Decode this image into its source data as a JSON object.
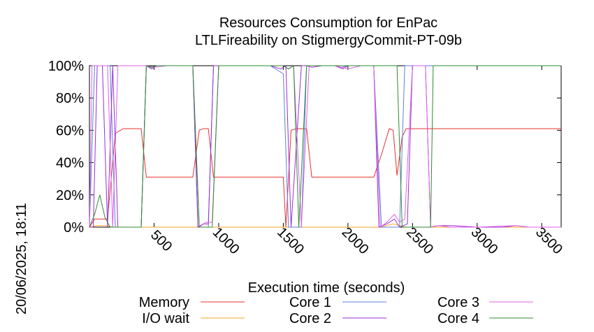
{
  "chart_data": {
    "type": "line",
    "title": "Resources Consumption for EnPac",
    "subtitle": "LTLFireability on StigmergyCommit-PT-09b",
    "xlabel": "Execution time (seconds)",
    "ylabel": "",
    "timestamp": "20/06/2025, 18:11",
    "xlim": [
      0,
      3650
    ],
    "ylim": [
      0,
      100
    ],
    "grid": false,
    "legend_position": "bottom",
    "x_ticks": [
      500,
      1000,
      1500,
      2000,
      2500,
      3000,
      3500
    ],
    "x_tick_labels": [
      "500",
      "1000",
      "1500",
      "2000",
      "2500",
      "3000",
      "3500"
    ],
    "y_ticks": [
      0,
      20,
      40,
      60,
      80,
      100
    ],
    "y_tick_labels": [
      "0%",
      "20%",
      "40%",
      "60%",
      "80%",
      "100%"
    ],
    "series": [
      {
        "name": "Memory",
        "color": "#e8322e",
        "x": [
          0,
          40,
          80,
          140,
          200,
          260,
          300,
          350,
          400,
          440,
          500,
          600,
          700,
          800,
          850,
          880,
          920,
          960,
          1000,
          1100,
          1200,
          1300,
          1400,
          1500,
          1520,
          1560,
          1600,
          1680,
          1720,
          1800,
          1900,
          2000,
          2100,
          2200,
          2260,
          2320,
          2350,
          2380,
          2420,
          2450,
          2500,
          2600,
          2700,
          2800,
          3000,
          3200,
          3400,
          3650
        ],
        "y": [
          0,
          5,
          5,
          5,
          58,
          61,
          61,
          61,
          61,
          31,
          31,
          31,
          31,
          31,
          60,
          61,
          61,
          31,
          31,
          31,
          31,
          31,
          31,
          31,
          0,
          60,
          61,
          61,
          31,
          31,
          31,
          31,
          31,
          31,
          45,
          61,
          60,
          32,
          56,
          61,
          61,
          61,
          61,
          61,
          61,
          61,
          61,
          61
        ]
      },
      {
        "name": "I/O wait",
        "color": "#f5a623",
        "x": [
          0,
          60,
          120,
          180,
          240,
          300,
          400,
          500,
          800,
          1000,
          1500,
          1600,
          2000,
          2250,
          2300,
          2350,
          2400,
          2450,
          2500,
          3000,
          3650
        ],
        "y": [
          0,
          1,
          1,
          0,
          0,
          0,
          0,
          0,
          0,
          0,
          0,
          0,
          0,
          0,
          1,
          2,
          1,
          0,
          0,
          0,
          0
        ]
      },
      {
        "name": "Core 1",
        "color": "#5b7fe0",
        "x": [
          0,
          40,
          100,
          160,
          200,
          240,
          400,
          440,
          480,
          520,
          600,
          700,
          800,
          840,
          880,
          920,
          960,
          1000,
          1400,
          1500,
          1540,
          1580,
          1640,
          1680,
          1720,
          1800,
          1900,
          1950,
          2000,
          2100,
          2200,
          2260,
          2320,
          2400,
          2440,
          2480,
          2520,
          2600,
          2660,
          2700,
          2800,
          3000,
          3650
        ],
        "y": [
          0,
          100,
          100,
          100,
          0,
          0,
          0,
          100,
          99,
          100,
          100,
          100,
          100,
          0,
          0,
          0,
          100,
          100,
          100,
          95,
          0,
          0,
          0,
          100,
          100,
          100,
          100,
          99,
          100,
          100,
          100,
          0,
          0,
          0,
          100,
          100,
          100,
          100,
          100,
          100,
          100,
          100,
          100
        ]
      },
      {
        "name": "Core 2",
        "color": "#9b2fd1",
        "x": [
          0,
          30,
          60,
          100,
          140,
          180,
          220,
          400,
          440,
          480,
          520,
          600,
          800,
          840,
          880,
          920,
          960,
          1000,
          1400,
          1480,
          1520,
          1560,
          1640,
          1680,
          1720,
          1800,
          1900,
          1960,
          2000,
          2100,
          2200,
          2240,
          2300,
          2360,
          2400,
          2460,
          2500,
          2560,
          2600,
          2640,
          2700,
          2800,
          3000,
          3200,
          3300,
          3400,
          3650
        ],
        "y": [
          0,
          0,
          100,
          100,
          0,
          100,
          0,
          0,
          100,
          98,
          100,
          100,
          100,
          0,
          2,
          2,
          100,
          100,
          100,
          98,
          100,
          0,
          100,
          100,
          99,
          100,
          100,
          98,
          100,
          100,
          100,
          0,
          2,
          5,
          0,
          2,
          100,
          100,
          100,
          0,
          1,
          1,
          0,
          0,
          1,
          0,
          0
        ]
      },
      {
        "name": "Core 3",
        "color": "#e060e8",
        "x": [
          0,
          20,
          60,
          100,
          140,
          180,
          220,
          300,
          400,
          440,
          500,
          600,
          800,
          850,
          900,
          950,
          1000,
          1400,
          1500,
          1540,
          1580,
          1640,
          1700,
          1800,
          1900,
          2000,
          2100,
          2200,
          2250,
          2300,
          2360,
          2400,
          2440,
          2500,
          2560,
          2600,
          2640,
          2700,
          2800,
          3000,
          3300,
          3400,
          3650
        ],
        "y": [
          0,
          100,
          100,
          100,
          100,
          0,
          100,
          100,
          100,
          100,
          99,
          100,
          100,
          0,
          3,
          3,
          100,
          100,
          100,
          98,
          100,
          0,
          100,
          100,
          100,
          98,
          100,
          100,
          0,
          3,
          8,
          3,
          5,
          100,
          100,
          100,
          0,
          1,
          0,
          0,
          1,
          0,
          0
        ]
      },
      {
        "name": "Core 4",
        "color": "#2e8b2e",
        "x": [
          0,
          40,
          80,
          120,
          160,
          200,
          240,
          300,
          400,
          440,
          480,
          520,
          600,
          700,
          800,
          850,
          900,
          950,
          1000,
          1400,
          1500,
          1540,
          1580,
          1620,
          1680,
          1800,
          1900,
          2000,
          2100,
          2200,
          2260,
          2300,
          2380,
          2420,
          2440,
          2500,
          2560,
          2600,
          2640,
          2660,
          2700,
          2800,
          3000,
          3650
        ],
        "y": [
          0,
          8,
          20,
          6,
          0,
          0,
          0,
          0,
          0,
          100,
          99,
          100,
          100,
          100,
          100,
          0,
          0,
          0,
          100,
          100,
          100,
          98,
          100,
          0,
          100,
          100,
          100,
          100,
          100,
          100,
          100,
          100,
          100,
          0,
          0,
          0,
          0,
          0,
          0,
          100,
          100,
          100,
          100,
          100
        ]
      }
    ]
  }
}
